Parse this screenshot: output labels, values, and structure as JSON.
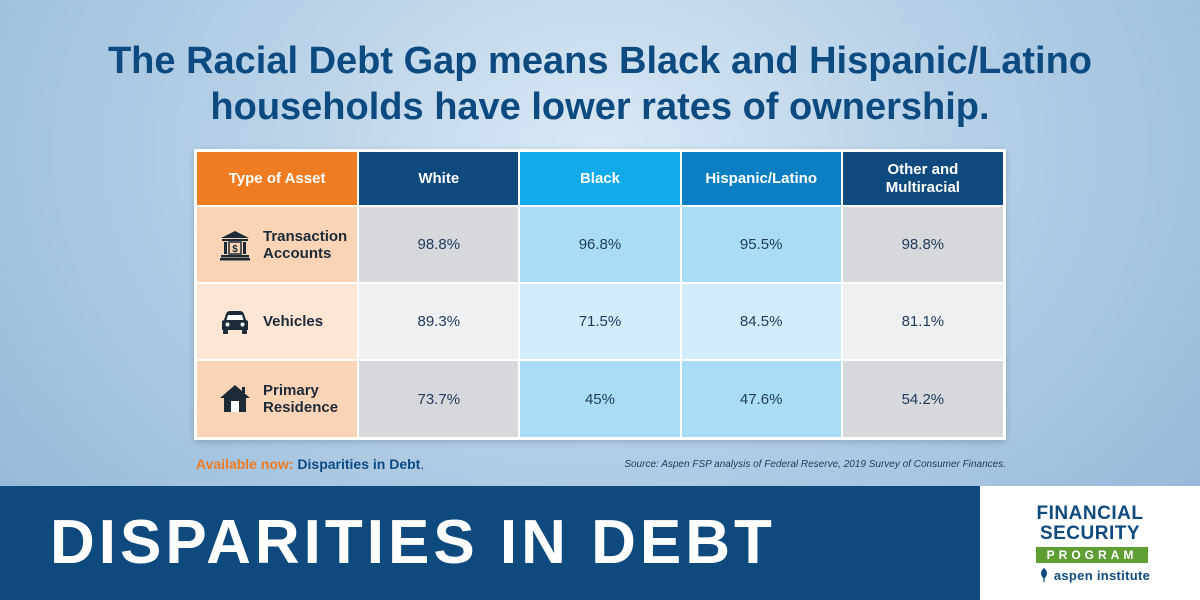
{
  "headline": {
    "line1": "The Racial Debt Gap means Black and Hispanic/Latino",
    "line2": "households have lower rates of ownership."
  },
  "table": {
    "headers": {
      "type": "Type of Asset",
      "white": "White",
      "black": "Black",
      "hispanic": "Hispanic/Latino",
      "other_line1": "Other and",
      "other_line2": "Multiracial"
    },
    "rows": [
      {
        "icon": "bank-icon",
        "label_line1": "Transaction",
        "label_line2": "Accounts",
        "white": "98.8%",
        "black": "96.8%",
        "hispanic": "95.5%",
        "other": "98.8%"
      },
      {
        "icon": "car-icon",
        "label_line1": "Vehicles",
        "label_line2": "",
        "white": "89.3%",
        "black": "71.5%",
        "hispanic": "84.5%",
        "other": "81.1%"
      },
      {
        "icon": "house-icon",
        "label_line1": "Primary",
        "label_line2": "Residence",
        "white": "73.7%",
        "black": "45%",
        "hispanic": "47.6%",
        "other": "54.2%"
      }
    ]
  },
  "footer": {
    "available_label": "Available now:",
    "available_link": "Disparities in Debt",
    "available_end": ".",
    "source": "Source: Aspen FSP analysis of Federal Reserve, 2019 Survey of Consumer Finances."
  },
  "banner": {
    "title": "DISPARITIES IN DEBT"
  },
  "logo": {
    "line1": "FINANCIAL",
    "line2": "SECURITY",
    "line3": "PROGRAM",
    "org": "aspen institute"
  },
  "colors": {
    "navy": "#0e4a7e",
    "orange": "#f07c22",
    "cyan": "#12aaea",
    "mid_blue": "#0c7fc4",
    "green": "#5e9e35"
  }
}
